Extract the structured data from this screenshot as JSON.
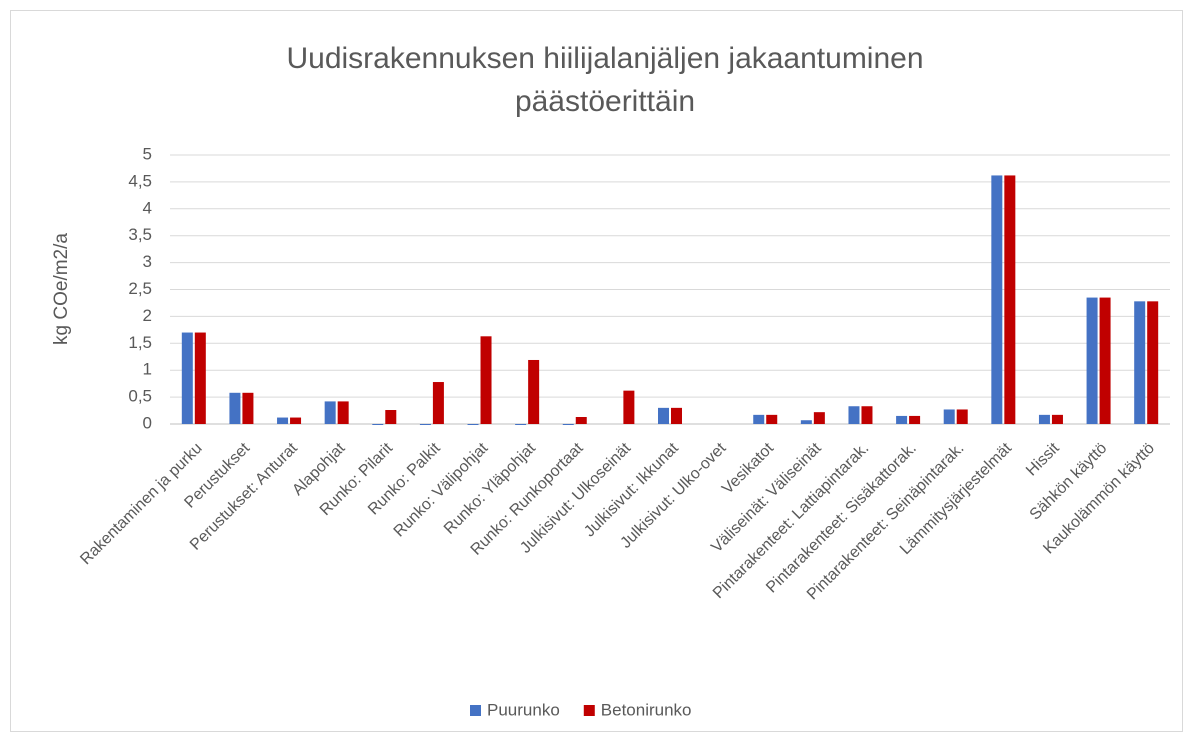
{
  "chart_data": {
    "type": "bar",
    "title": [
      "Uudisrakennuksen  hiilijalanjäljen jakaantuminen",
      "päästöerittäin"
    ],
    "y_label": "kg COe/m2/a",
    "categories": [
      "Rakentaminen ja purku",
      "Perustukset",
      "Perustukset: Anturat",
      "Alapohjat",
      "Runko: Pilarit",
      "Runko: Palkit",
      "Runko: Välipohjat",
      "Runko: Yläpohjat",
      "Runko: Runkoportaat",
      "Julkisivut: Ulkoseinät",
      "Julkisivut: Ikkunat",
      "Julkisivut: Ulko-ovet",
      "Vesikatot",
      "Väliseinät: Väliseinät",
      "Pintarakenteet: Lattiapintarak.",
      "Pintarakenteet: Sisäkattorak.",
      "Pintarakenteet: Seinäpintarak.",
      "Lämmitysjärjestelmät",
      "Hissit",
      "Sähkön käyttö",
      "Kaukolämmön käyttö"
    ],
    "series": [
      {
        "name": "Puurunko",
        "color": "#4472c4",
        "values": [
          1.7,
          0.58,
          0.12,
          0.42,
          -0.01,
          -0.01,
          -0.01,
          -0.01,
          -0.01,
          0,
          0.3,
          0,
          0.17,
          0.07,
          0.33,
          0.15,
          0.27,
          4.62,
          0.17,
          2.35,
          2.28
        ]
      },
      {
        "name": "Betonirunko",
        "color": "#c00000",
        "values": [
          1.7,
          0.58,
          0.12,
          0.42,
          0.26,
          0.78,
          1.63,
          1.19,
          0.13,
          0.62,
          0.3,
          0,
          0.17,
          0.22,
          0.33,
          0.15,
          0.27,
          4.62,
          0.17,
          2.35,
          2.28
        ]
      }
    ],
    "ylim": [
      0,
      5
    ],
    "yticks": [
      0,
      {
        "value": 0.5,
        "label": "0,5"
      },
      1,
      {
        "value": 1.5,
        "label": "1,5"
      },
      2,
      {
        "value": 2.5,
        "label": "2,5"
      },
      3,
      {
        "value": 3.5,
        "label": "3,5"
      },
      4,
      {
        "value": 4.5,
        "label": "4,5"
      },
      5
    ],
    "grid": true,
    "legend": "bottom"
  }
}
